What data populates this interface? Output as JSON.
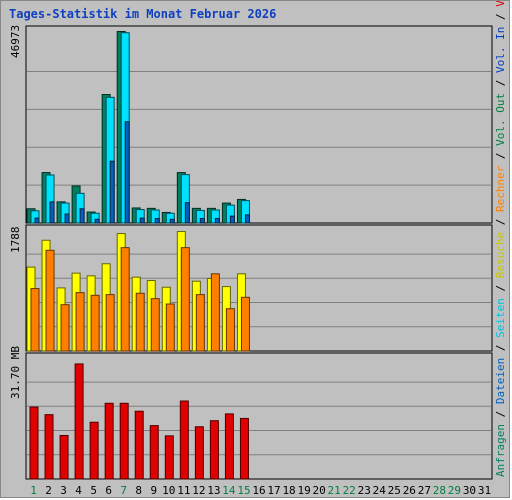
{
  "title": "Tages-Statistik im Monat Februar 2026",
  "colors": {
    "background": "#c0c0c0",
    "panel_border": "#000000",
    "grid": "#808080",
    "anfragen": "#008060",
    "dateien": "#00e0ff",
    "seiten": "#0060c0",
    "besuche": "#ffff00",
    "rechner": "#ff8000",
    "volumen": "#e00000",
    "title": "#1040c0",
    "weekday_label": "#000000",
    "weekend_label": "#008040"
  },
  "chart_data": [
    {
      "type": "bar",
      "name": "hits_files_pages",
      "ymax_label": "46973",
      "ylim": [
        0,
        46973
      ],
      "x": [
        1,
        2,
        3,
        4,
        5,
        6,
        7,
        8,
        9,
        10,
        11,
        12,
        13,
        14,
        15,
        16,
        17,
        18,
        19,
        20,
        21,
        22,
        23,
        24,
        25,
        26,
        27,
        28,
        29,
        30,
        31
      ],
      "series": [
        {
          "name": "Anfragen",
          "values": [
            3500,
            12400,
            5200,
            9100,
            2700,
            31600,
            47100,
            3700,
            3600,
            2600,
            12400,
            3600,
            3600,
            4900,
            5800,
            null,
            null,
            null,
            null,
            null,
            null,
            null,
            null,
            null,
            null,
            null,
            null,
            null,
            null,
            null,
            null
          ]
        },
        {
          "name": "Dateien",
          "values": [
            3000,
            11800,
            4900,
            7300,
            2400,
            30900,
            46800,
            3300,
            3200,
            2400,
            11900,
            3100,
            3200,
            4400,
            5500,
            null,
            null,
            null,
            null,
            null,
            null,
            null,
            null,
            null,
            null,
            null,
            null,
            null,
            null,
            null,
            null
          ]
        },
        {
          "name": "Seiten",
          "values": [
            1200,
            5200,
            2200,
            3500,
            900,
            15200,
            24900,
            1200,
            1100,
            900,
            5000,
            1100,
            1100,
            1700,
            2000,
            null,
            null,
            null,
            null,
            null,
            null,
            null,
            null,
            null,
            null,
            null,
            null,
            null,
            null,
            null,
            null
          ]
        }
      ],
      "legend": [
        "Anfragen",
        "Dateien",
        "Seiten"
      ]
    },
    {
      "type": "bar",
      "name": "visits_hosts",
      "ymax_label": "1788",
      "ylim": [
        0,
        1788
      ],
      "x": [
        1,
        2,
        3,
        4,
        5,
        6,
        7,
        8,
        9,
        10,
        11,
        12,
        13,
        14,
        15,
        16,
        17,
        18,
        19,
        20,
        21,
        22,
        23,
        24,
        25,
        26,
        27,
        28,
        29,
        30,
        31
      ],
      "series": [
        {
          "name": "Besuche",
          "values": [
            1250,
            1650,
            940,
            1160,
            1120,
            1300,
            1750,
            1100,
            1050,
            950,
            1780,
            1040,
            1080,
            960,
            1150,
            null,
            null,
            null,
            null,
            null,
            null,
            null,
            null,
            null,
            null,
            null,
            null,
            null,
            null,
            null,
            null
          ]
        },
        {
          "name": "Rechner",
          "values": [
            930,
            1500,
            690,
            870,
            830,
            840,
            1540,
            860,
            780,
            700,
            1540,
            840,
            1150,
            630,
            800,
            null,
            null,
            null,
            null,
            null,
            null,
            null,
            null,
            null,
            null,
            null,
            null,
            null,
            null,
            null,
            null
          ]
        }
      ],
      "legend": [
        "Besuche",
        "Rechner"
      ]
    },
    {
      "type": "bar",
      "name": "volume",
      "ymax_label": "31.70 MB",
      "ylim": [
        0,
        31.7
      ],
      "x": [
        1,
        2,
        3,
        4,
        5,
        6,
        7,
        8,
        9,
        10,
        11,
        12,
        13,
        14,
        15,
        16,
        17,
        18,
        19,
        20,
        21,
        22,
        23,
        24,
        25,
        26,
        27,
        28,
        29,
        30,
        31
      ],
      "series": [
        {
          "name": "Volumen",
          "values": [
            19.0,
            17.0,
            11.5,
            30.4,
            15.0,
            20.0,
            20.0,
            17.9,
            14.1,
            11.4,
            20.6,
            13.8,
            15.4,
            17.2,
            16.0,
            null,
            null,
            null,
            null,
            null,
            null,
            null,
            null,
            null,
            null,
            null,
            null,
            null,
            null,
            null,
            null
          ]
        }
      ],
      "legend": [
        "Volumen",
        "Vol. In",
        "Vol. Out"
      ]
    }
  ],
  "days": [
    "1",
    "2",
    "3",
    "4",
    "5",
    "6",
    "7",
    "8",
    "9",
    "10",
    "11",
    "12",
    "13",
    "14",
    "15",
    "16",
    "17",
    "18",
    "19",
    "20",
    "21",
    "22",
    "23",
    "24",
    "25",
    "26",
    "27",
    "28",
    "29",
    "30",
    "31"
  ],
  "weekend_days": [
    1,
    7,
    14,
    15,
    21,
    22,
    28,
    29
  ],
  "right_legend": {
    "items": [
      "Anfragen",
      "/",
      "Dateien",
      "/",
      "Seiten",
      "/",
      "Besuche",
      "/",
      "Rechner",
      "/",
      "Vol. Out",
      "/",
      "Vol. In",
      "/",
      "Volumen"
    ],
    "colors": [
      "#008060",
      "#000000",
      "#0060c0",
      "#000000",
      "#00c0e0",
      "#000000",
      "#c8c800",
      "#000000",
      "#ff8000",
      "#000000",
      "#008040",
      "#000000",
      "#0040c0",
      "#000000",
      "#e00000"
    ]
  }
}
